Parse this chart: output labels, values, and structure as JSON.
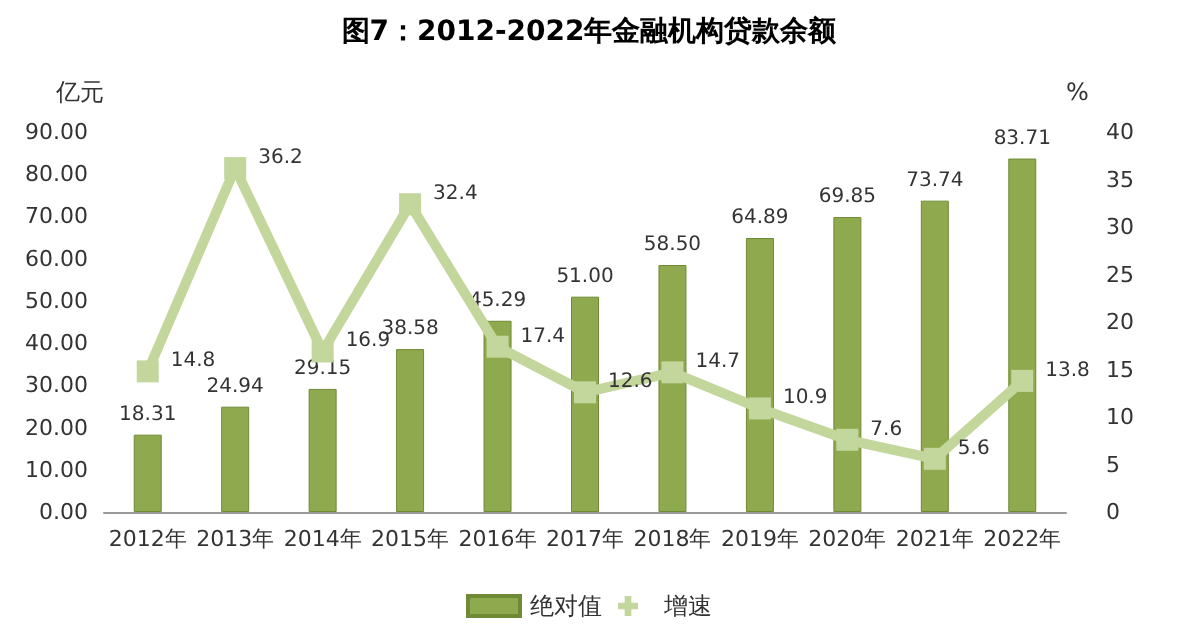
{
  "chart_data": {
    "type": "bar",
    "title": "图7：2012-2022年金融机构贷款余额",
    "ylabel": "亿元",
    "y2label": "%",
    "categories": [
      "2012年",
      "2013年",
      "2014年",
      "2015年",
      "2016年",
      "2017年",
      "2018年",
      "2019年",
      "2020年",
      "2021年",
      "2022年"
    ],
    "series": [
      {
        "name": "绝对值",
        "color": "#8faa4e",
        "values": [
          18.31,
          24.94,
          29.15,
          38.58,
          45.29,
          51.0,
          58.5,
          64.89,
          69.85,
          73.74,
          83.71
        ],
        "value_labels": [
          "18.31",
          "24.94",
          "29.15",
          "38.58",
          "45.29",
          "51.00",
          "58.50",
          "64.89",
          "69.85",
          "73.74",
          "83.71"
        ]
      },
      {
        "name": "增速",
        "type": "line",
        "axis": "y2",
        "color": "#c3d69b",
        "marker": "square",
        "values": [
          14.8,
          36.2,
          16.9,
          32.4,
          17.4,
          12.6,
          14.7,
          10.9,
          7.6,
          5.6,
          13.8
        ],
        "value_labels": [
          "14.8",
          "36.2",
          "16.9",
          "32.4",
          "17.4",
          "12.6",
          "14.7",
          "10.9",
          "7.6",
          "5.6",
          "13.8"
        ]
      }
    ],
    "ylim": [
      0,
      90
    ],
    "yticks": [
      {
        "value": 0,
        "label": "0.00"
      },
      {
        "value": 10,
        "label": "10.00"
      },
      {
        "value": 20,
        "label": "20.00"
      },
      {
        "value": 30,
        "label": "30.00"
      },
      {
        "value": 40,
        "label": "40.00"
      },
      {
        "value": 50,
        "label": "50.00"
      },
      {
        "value": 60,
        "label": "60.00"
      },
      {
        "value": 70,
        "label": "70.00"
      },
      {
        "value": 80,
        "label": "80.00"
      },
      {
        "value": 90,
        "label": "90.00"
      }
    ],
    "y2lim": [
      0,
      40
    ],
    "y2ticks": [
      0,
      5,
      10,
      15,
      20,
      25,
      30,
      35,
      40
    ],
    "legend": "bottom",
    "grid": false
  }
}
